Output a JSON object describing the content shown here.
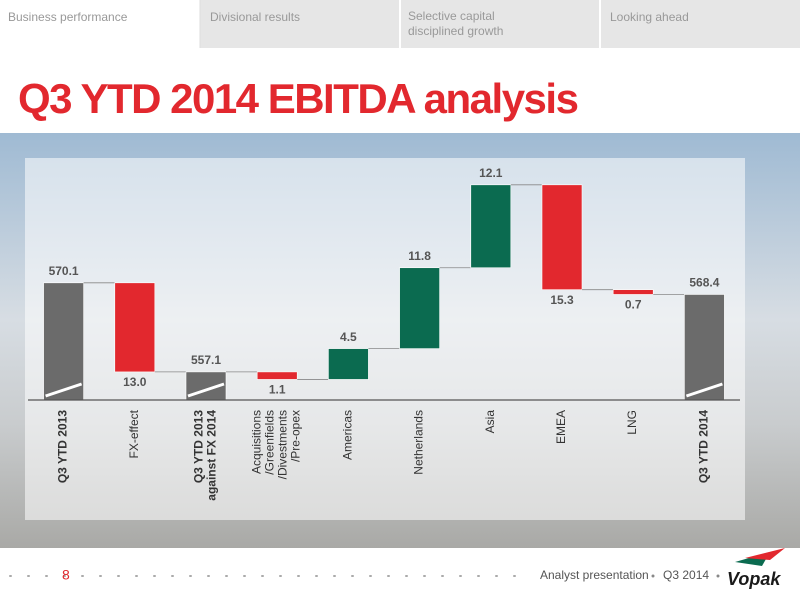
{
  "tabs": [
    "Business performance",
    "Divisional results",
    "Selective capital disciplined growth",
    "Looking ahead"
  ],
  "chart_data": {
    "type": "waterfall",
    "title": "Q3 YTD 2014 EBITDA analysis",
    "categories": [
      [
        "Q3 YTD 2013"
      ],
      [
        "FX-effect"
      ],
      [
        "Q3 YTD 2013",
        "against FX 2014"
      ],
      [
        "Acquisitions",
        "/Greenfields",
        "/Divestments",
        "/Pre-opex"
      ],
      [
        "Americas"
      ],
      [
        "Netherlands"
      ],
      [
        "Asia"
      ],
      [
        "EMEA"
      ],
      [
        "LNG"
      ],
      [
        "Q3 YTD 2014"
      ]
    ],
    "values": [
      570.1,
      -13.0,
      557.1,
      -1.1,
      4.5,
      11.8,
      12.1,
      -15.3,
      -0.7,
      568.4
    ],
    "value_labels": [
      "570.1",
      "13.0",
      "557.1",
      "1.1",
      "4.5",
      "11.8",
      "12.1",
      "15.3",
      "0.7",
      "568.4"
    ],
    "total_indices": [
      0,
      2,
      9
    ],
    "colors": {
      "total": "#6b6b6b",
      "increase": "#0b6b50",
      "decrease": "#e2282e"
    },
    "ylim": [
      553,
      587
    ]
  },
  "footer": {
    "page": "8",
    "presentation": "Analyst presentation",
    "period": "Q3 2014",
    "logo": "Vopak"
  }
}
